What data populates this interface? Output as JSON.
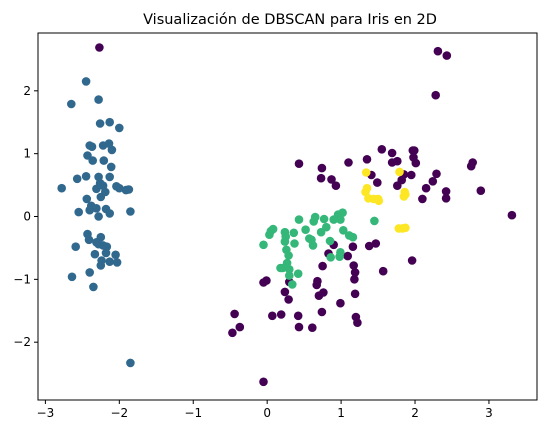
{
  "chart_data": {
    "type": "scatter",
    "title": "Visualización de DBSCAN para Iris en 2D",
    "xlabel": "",
    "ylabel": "",
    "xlim": [
      -3.1,
      3.65
    ],
    "ylim": [
      -2.92,
      2.92
    ],
    "xticks": [
      -3,
      -2,
      -1,
      0,
      1,
      2,
      3
    ],
    "yticks": [
      -2,
      -1,
      0,
      1,
      2
    ],
    "grid": false,
    "legend": "none",
    "series": [
      {
        "color": "#440154",
        "points": [
          [
            -2.27,
            2.69
          ],
          [
            -0.37,
            -1.76
          ],
          [
            -0.05,
            -2.63
          ],
          [
            -0.44,
            -1.55
          ],
          [
            -0.47,
            -1.85
          ],
          [
            -0.05,
            -1.05
          ],
          [
            -0.01,
            -1.02
          ],
          [
            0.07,
            -1.58
          ],
          [
            0.19,
            -1.56
          ],
          [
            0.24,
            -1.2
          ],
          [
            0.29,
            -1.32
          ],
          [
            0.3,
            -1.04
          ],
          [
            0.42,
            -1.58
          ],
          [
            0.43,
            -1.76
          ],
          [
            0.61,
            -1.77
          ],
          [
            0.68,
            -1.03
          ],
          [
            0.67,
            -1.09
          ],
          [
            0.7,
            -1.26
          ],
          [
            0.74,
            -1.52
          ],
          [
            0.76,
            -1.21
          ],
          [
            0.75,
            -0.79
          ],
          [
            0.83,
            -0.59
          ],
          [
            0.9,
            -0.45
          ],
          [
            0.99,
            -1.38
          ],
          [
            1.09,
            -0.63
          ],
          [
            1.16,
            -0.48
          ],
          [
            1.17,
            -0.78
          ],
          [
            1.19,
            -0.89
          ],
          [
            1.18,
            -1.0
          ],
          [
            1.19,
            -1.23
          ],
          [
            1.2,
            -1.6
          ],
          [
            1.22,
            -1.69
          ],
          [
            1.38,
            -0.47
          ],
          [
            1.47,
            -0.43
          ],
          [
            1.57,
            -0.87
          ],
          [
            1.96,
            -0.7
          ],
          [
            0.43,
            0.84
          ],
          [
            0.73,
            0.61
          ],
          [
            0.74,
            0.77
          ],
          [
            0.87,
            0.59
          ],
          [
            0.93,
            0.49
          ],
          [
            1.1,
            0.86
          ],
          [
            1.35,
            0.91
          ],
          [
            1.41,
            0.66
          ],
          [
            1.49,
            0.54
          ],
          [
            1.55,
            1.07
          ],
          [
            1.69,
            0.86
          ],
          [
            1.69,
            1.01
          ],
          [
            1.76,
            0.49
          ],
          [
            1.76,
            0.88
          ],
          [
            1.82,
            0.58
          ],
          [
            1.85,
            0.67
          ],
          [
            1.95,
            0.66
          ],
          [
            1.99,
            1.05
          ],
          [
            1.98,
            0.94
          ],
          [
            2.01,
            0.85
          ],
          [
            2.1,
            0.28
          ],
          [
            2.15,
            0.45
          ],
          [
            2.24,
            0.56
          ],
          [
            2.42,
            0.4
          ],
          [
            2.42,
            0.29
          ],
          [
            2.29,
            0.68
          ],
          [
            2.28,
            1.93
          ],
          [
            2.31,
            2.63
          ],
          [
            2.43,
            2.56
          ],
          [
            2.76,
            0.8
          ],
          [
            2.78,
            0.86
          ],
          [
            2.89,
            0.41
          ],
          [
            3.31,
            0.02
          ],
          [
            1.97,
            1.05
          ]
        ]
      },
      {
        "color": "#31688e",
        "points": [
          [
            -2.45,
            2.15
          ],
          [
            -2.65,
            1.79
          ],
          [
            -2.28,
            1.86
          ],
          [
            -2.26,
            1.48
          ],
          [
            -2.13,
            1.5
          ],
          [
            -2.0,
            1.41
          ],
          [
            -2.4,
            1.13
          ],
          [
            -2.37,
            1.11
          ],
          [
            -2.22,
            1.13
          ],
          [
            -2.14,
            1.16
          ],
          [
            -2.1,
            1.06
          ],
          [
            -2.43,
            0.97
          ],
          [
            -2.36,
            0.89
          ],
          [
            -2.21,
            0.89
          ],
          [
            -2.11,
            0.79
          ],
          [
            -2.45,
            0.64
          ],
          [
            -2.28,
            0.63
          ],
          [
            -2.13,
            0.63
          ],
          [
            -2.57,
            0.6
          ],
          [
            -2.26,
            0.53
          ],
          [
            -2.22,
            0.49
          ],
          [
            -2.31,
            0.44
          ],
          [
            -2.04,
            0.48
          ],
          [
            -2.0,
            0.45
          ],
          [
            -1.91,
            0.42
          ],
          [
            -1.87,
            0.43
          ],
          [
            -2.78,
            0.45
          ],
          [
            -2.19,
            0.39
          ],
          [
            -2.25,
            0.31
          ],
          [
            -2.44,
            0.28
          ],
          [
            -2.38,
            0.17
          ],
          [
            -2.31,
            0.13
          ],
          [
            -2.4,
            0.1
          ],
          [
            -2.18,
            0.12
          ],
          [
            -1.85,
            0.08
          ],
          [
            -2.13,
            0.05
          ],
          [
            -2.55,
            0.07
          ],
          [
            -2.28,
            0.0
          ],
          [
            -2.43,
            -0.28
          ],
          [
            -2.25,
            -0.33
          ],
          [
            -2.41,
            -0.37
          ],
          [
            -2.31,
            -0.41
          ],
          [
            -2.28,
            -0.44
          ],
          [
            -2.22,
            -0.46
          ],
          [
            -2.59,
            -0.48
          ],
          [
            -2.17,
            -0.48
          ],
          [
            -2.33,
            -0.6
          ],
          [
            -2.18,
            -0.58
          ],
          [
            -2.05,
            -0.61
          ],
          [
            -2.03,
            -0.73
          ],
          [
            -2.13,
            -0.72
          ],
          [
            -2.24,
            -0.7
          ],
          [
            -2.25,
            -0.78
          ],
          [
            -2.4,
            -0.89
          ],
          [
            -2.64,
            -0.96
          ],
          [
            -2.35,
            -1.12
          ],
          [
            -1.85,
            -2.33
          ]
        ]
      },
      {
        "color": "#35b779",
        "points": [
          [
            -0.05,
            -0.45
          ],
          [
            0.03,
            -0.29
          ],
          [
            0.05,
            -0.23
          ],
          [
            0.08,
            -0.2
          ],
          [
            0.24,
            -0.25
          ],
          [
            0.24,
            -0.4
          ],
          [
            0.25,
            -0.32
          ],
          [
            0.36,
            -0.26
          ],
          [
            0.43,
            -0.05
          ],
          [
            0.52,
            -0.21
          ],
          [
            0.57,
            -0.35
          ],
          [
            0.63,
            -0.08
          ],
          [
            0.65,
            -0.01
          ],
          [
            0.6,
            -0.37
          ],
          [
            0.77,
            -0.04
          ],
          [
            0.8,
            -0.17
          ],
          [
            0.73,
            -0.25
          ],
          [
            0.85,
            -0.39
          ],
          [
            0.9,
            -0.05
          ],
          [
            0.96,
            0.03
          ],
          [
            1.02,
            0.06
          ],
          [
            0.99,
            -0.05
          ],
          [
            1.03,
            -0.22
          ],
          [
            1.11,
            -0.3
          ],
          [
            1.16,
            -0.33
          ],
          [
            1.45,
            -0.07
          ],
          [
            0.98,
            -0.64
          ],
          [
            0.37,
            -0.43
          ],
          [
            0.26,
            -0.53
          ],
          [
            0.29,
            -0.62
          ],
          [
            0.21,
            -0.82
          ],
          [
            0.18,
            -0.82
          ],
          [
            0.3,
            -0.84
          ],
          [
            0.42,
            -0.91
          ],
          [
            0.62,
            -0.46
          ],
          [
            0.86,
            -0.65
          ],
          [
            0.99,
            -0.57
          ],
          [
            0.27,
            -0.74
          ],
          [
            0.3,
            -0.94
          ],
          [
            0.34,
            -1.08
          ]
        ]
      },
      {
        "color": "#fde725",
        "points": [
          [
            1.34,
            0.7
          ],
          [
            1.35,
            0.45
          ],
          [
            1.33,
            0.39
          ],
          [
            1.37,
            0.29
          ],
          [
            1.44,
            0.28
          ],
          [
            1.5,
            0.28
          ],
          [
            1.51,
            0.25
          ],
          [
            1.86,
            0.39
          ],
          [
            1.87,
            0.35
          ],
          [
            1.85,
            0.32
          ],
          [
            1.78,
            -0.19
          ],
          [
            1.83,
            -0.19
          ],
          [
            1.87,
            -0.18
          ],
          [
            1.79,
            0.71
          ]
        ]
      }
    ]
  }
}
